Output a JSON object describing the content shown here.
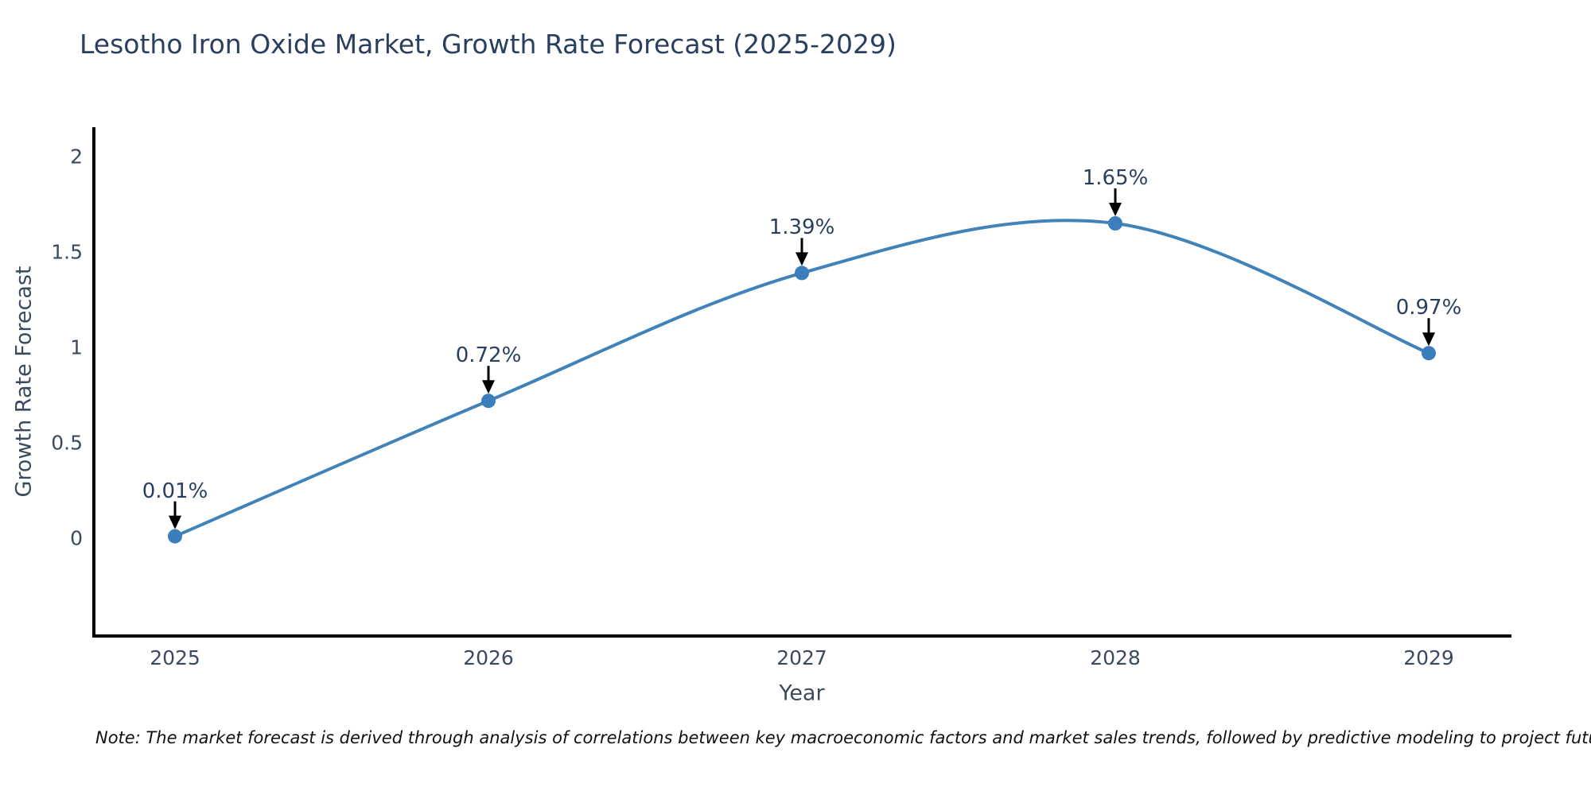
{
  "title": "Lesotho Iron Oxide Market, Growth Rate Forecast (2025-2029)",
  "chart_data": {
    "type": "line",
    "title": "Lesotho Iron Oxide Market, Growth Rate Forecast (2025-2029)",
    "x": [
      2025,
      2026,
      2027,
      2028,
      2029
    ],
    "categories": [
      "2025",
      "2026",
      "2027",
      "2028",
      "2029"
    ],
    "series": [
      {
        "name": "Growth Rate Forecast",
        "values": [
          0.01,
          0.72,
          1.39,
          1.65,
          0.97
        ],
        "point_labels": [
          "0.01%",
          "0.72%",
          "1.39%",
          "1.65%",
          "0.97%"
        ]
      }
    ],
    "xlabel": "Year",
    "ylabel": "Growth Rate Forecast",
    "ytick_values": [
      0,
      0.5,
      1,
      1.5,
      2
    ],
    "ytick_labels": [
      "0",
      "0.5",
      "1",
      "1.5",
      "2"
    ],
    "ylim": [
      -0.5125,
      2.1542
    ],
    "xlim": [
      2024.74,
      2029.26
    ],
    "line_shape": "spline",
    "grid": false,
    "legend": "none",
    "colors": {
      "line": "#4183b8",
      "marker": "#3a7ebd",
      "axis": "#000000",
      "annotation_arrow": "#000000",
      "title_text": "#2a3f5f",
      "tick_text": "#3b4a5f"
    }
  },
  "note": "Note: The market forecast is derived through analysis of correlations between key macroeconomic factors and market sales trends, followed by predictive modeling to project future sales"
}
